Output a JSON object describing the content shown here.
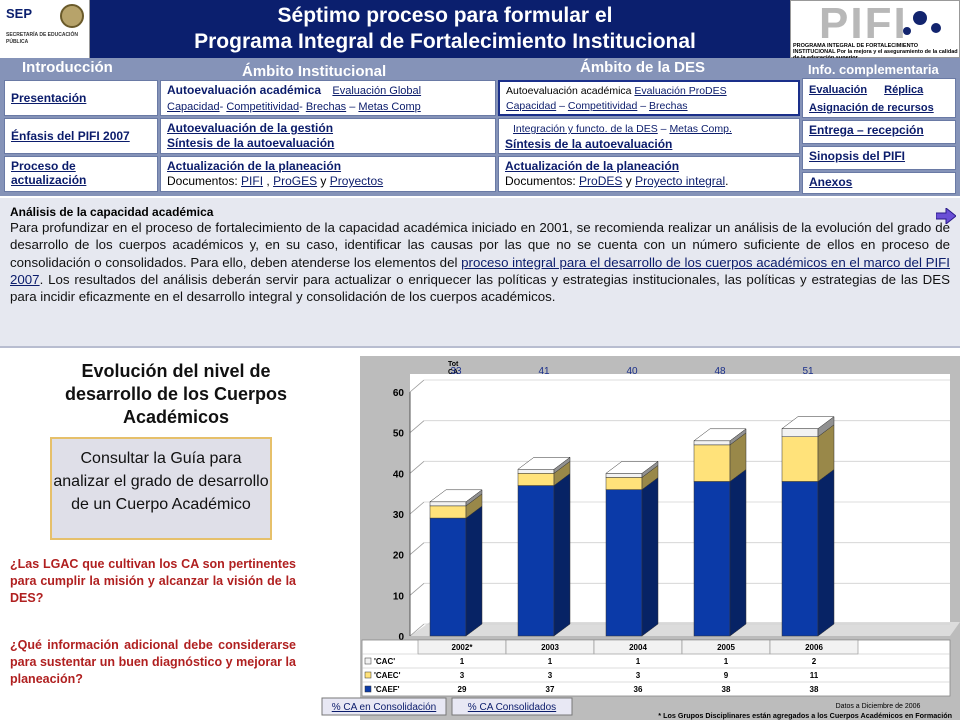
{
  "header": {
    "sep_logo": "SEP",
    "sep_subtitle": "SECRETARÍA DE EDUCACIÓN PÚBLICA",
    "title_line1": "Séptimo proceso para formular el",
    "title_line2": "Programa Integral de Fortalecimiento Institucional",
    "pifi_logo": "PIFI",
    "pifi_caption": "PROGRAMA INTEGRAL DE FORTALECIMIENTO INSTITUCIONAL Por la mejora y el aseguramiento de la calidad de la educación superior"
  },
  "nav": {
    "tab_intro": "Introducción",
    "tab_inst": "Ámbito Institucional",
    "tab_des": "Ámbito de la DES",
    "tab_info": "Info. complementaria",
    "intro": [
      "Presentación",
      "Énfasis del PIFI 2007",
      "Proceso de actualización"
    ],
    "inst_r1_title": "Autoevaluación académica",
    "inst_r1_l1": "Evaluación Global",
    "inst_r1_l2": "Capacidad",
    "inst_r1_l3": "Competitividad",
    "inst_r1_l4": "Brechas",
    "inst_r1_l5": "Metas Comp",
    "inst_r2_a": "Autoevaluación de la gestión",
    "inst_r2_b": "Síntesis de la autoevaluación",
    "inst_r3_a": "Actualización de la planeación",
    "inst_r3_b": "Documentos:",
    "inst_r3_l1": "PIFI",
    "inst_r3_l2": "ProGES",
    "inst_r3_l3": "Proyectos",
    "des_r1_title": "Autoevaluación académica",
    "des_r1_l1": "Evaluación ProDES",
    "des_r1_l2": "Capacidad",
    "des_r1_l3": "Competitividad",
    "des_r1_l4": "Brechas",
    "des_r2_l1": "Integración y functo. de la DES",
    "des_r2_l2": "Metas Comp.",
    "des_r2_b": "Síntesis de la autoevaluación",
    "des_r3_a": "Actualización de la planeación",
    "des_r3_b": "Documentos:",
    "des_r3_l1": "ProDES",
    "des_r3_l2": "Proyecto integral",
    "info_l1": "Evaluación",
    "info_l2": "Réplica",
    "info_l3": "Asignación de recursos",
    "info_items": [
      "Entrega – recepción",
      "Sinopsis del PIFI",
      "Anexos"
    ]
  },
  "analysis": {
    "title": "Análisis de la capacidad  académica",
    "p1": "Para profundizar en el proceso de fortalecimiento de la capacidad académica iniciado en 2001, se recomienda realizar un análisis de la evolución del grado de desarrollo de los cuerpos académicos y, en su caso, identificar las causas por las que no se cuenta con un número suficiente de ellos en proceso de consolidación o consolidados. Para ello, deben atenderse los elementos del ",
    "link": "proceso integral para el desarrollo de los cuerpos académicos en el marco del PIFI 2007",
    "p2": ". Los resultados del análisis deberán servir para actualizar o enriquecer las políticas y estrategias institucionales, las políticas y estrategias de las DES para incidir eficazmente en el desarrollo integral y consolidación de los cuerpos académicos."
  },
  "left": {
    "chart_title": "Evolución del nivel de desarrollo de los Cuerpos Académicos",
    "guide_button": "Consultar la Guía para analizar el grado de desarrollo de un Cuerpo Académico",
    "q1": "¿Las LGAC que cultivan los CA son pertinentes para cumplir la misión y alcanzar la visión de la DES?",
    "q2": "¿Qué información adicional debe considerarse para sustentar un buen diagnóstico y mejorar la planeación?"
  },
  "chart_data": {
    "type": "bar",
    "stacked": true,
    "categories": [
      "2002*",
      "2003",
      "2004",
      "2005",
      "2006"
    ],
    "tot_label": "Tot CA",
    "totals": [
      33,
      41,
      40,
      48,
      51
    ],
    "ylim": [
      0,
      60
    ],
    "yticks": [
      0,
      10,
      20,
      30,
      40,
      50,
      60
    ],
    "series": [
      {
        "name": "'CAEF'",
        "values": [
          29,
          37,
          36,
          38,
          38
        ],
        "color": "#0b3aa8"
      },
      {
        "name": "'CAEC'",
        "values": [
          3,
          3,
          3,
          9,
          11
        ],
        "color": "#ffe27a"
      },
      {
        "name": "'CAC'",
        "values": [
          1,
          1,
          1,
          1,
          2
        ],
        "color": "#f2f2f2"
      }
    ],
    "buttons": [
      "% CA en Consolidación",
      "% CA Consolidados"
    ],
    "note_date": "Datos a Diciembre de 2006",
    "note": "* Los Grupos Disciplinares están agregados a los Cuerpos Académicos en Formación"
  }
}
